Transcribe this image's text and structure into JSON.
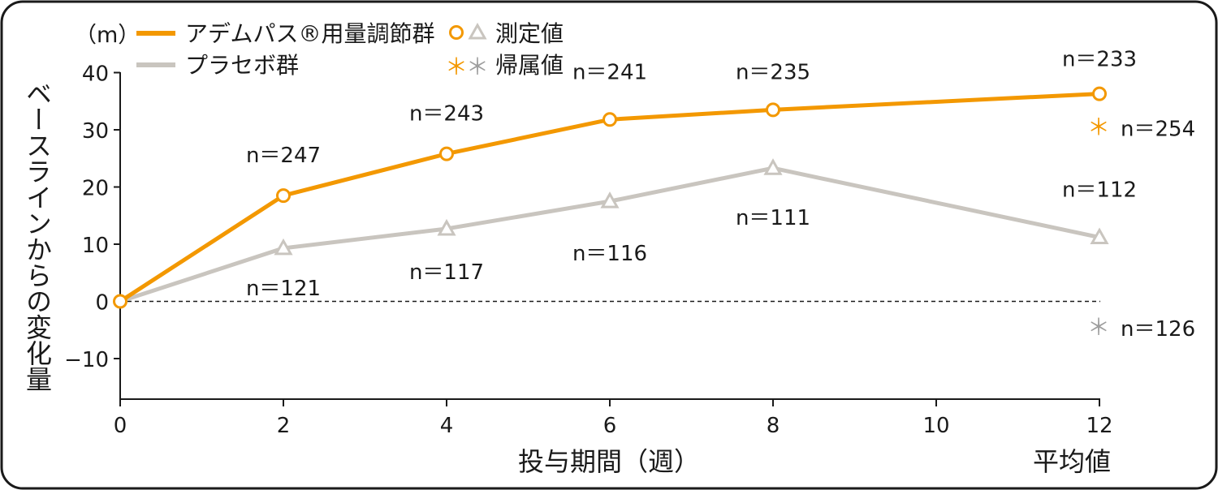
{
  "chart_data": {
    "type": "line",
    "unit": "（m）",
    "ylabel": "ベースラインからの変化量",
    "xlabel": "投与期間（週）",
    "summary_label": "平均値",
    "x": [
      0,
      2,
      4,
      6,
      8,
      12
    ],
    "x_ticks": [
      "0",
      "2",
      "4",
      "6",
      "8",
      "10",
      "12"
    ],
    "y_ticks": [
      "40",
      "30",
      "20",
      "10",
      "0",
      "−10"
    ],
    "ylim": [
      -17,
      40
    ],
    "series": [
      {
        "name": "アデムパス®用量調節群",
        "color": "#f39800",
        "marker": "circle",
        "values": [
          0,
          18.5,
          25.8,
          31.8,
          33.5,
          36.3
        ],
        "n_labels": [
          "",
          "n＝247",
          "n＝243",
          "n＝241",
          "n＝235",
          "n＝233"
        ],
        "imputed": {
          "value": 30.5,
          "label": "n＝254"
        }
      },
      {
        "name": "プラセボ群",
        "color": "#c9c5bf",
        "marker": "triangle",
        "values": [
          0,
          9.3,
          12.7,
          17.5,
          23.3,
          11.2
        ],
        "n_labels": [
          "",
          "n＝121",
          "n＝117",
          "n＝116",
          "n＝111",
          "n＝112"
        ],
        "imputed": {
          "value": -4.5,
          "label": "n＝126"
        }
      }
    ],
    "legend": {
      "measured_label": "測定値",
      "imputed_label": "帰属値",
      "imputed_star_color": "#9e9e9e",
      "placement": "top-left"
    }
  }
}
